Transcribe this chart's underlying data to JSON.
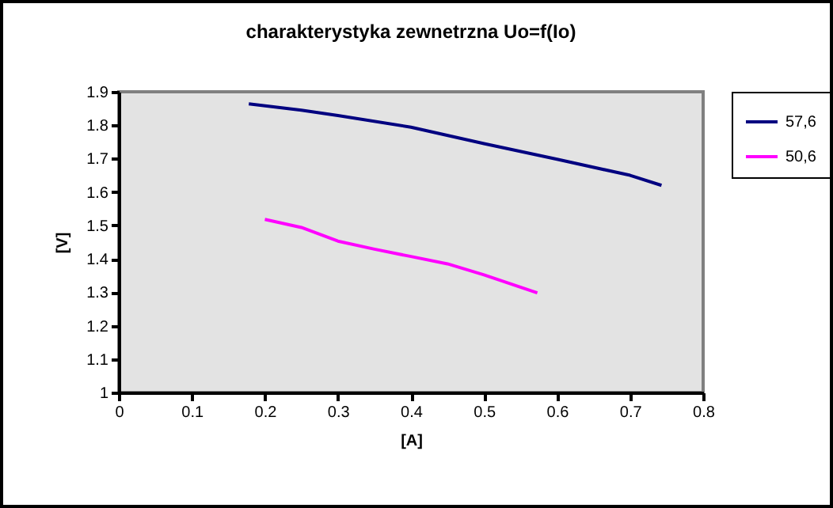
{
  "chart_data": {
    "type": "line",
    "title": "charakterystyka zewnetrzna Uo=f(Io)",
    "xlabel": "[A]",
    "ylabel": "[V]",
    "xlim": [
      0,
      0.8
    ],
    "xticks": [
      0,
      0.1,
      0.2,
      0.3,
      0.4,
      0.5,
      0.6,
      0.7,
      0.8
    ],
    "ylim": [
      1,
      1.9
    ],
    "yticks": [
      1,
      1.1,
      1.2,
      1.3,
      1.4,
      1.5,
      1.6,
      1.7,
      1.8,
      1.9
    ],
    "grid": false,
    "legend": "right",
    "marker": "none",
    "line_style": "solid",
    "series": [
      {
        "name": "57,6",
        "color": "#000080",
        "x": [
          0.178,
          0.25,
          0.3,
          0.4,
          0.5,
          0.6,
          0.7,
          0.743
        ],
        "values": [
          1.864,
          1.845,
          1.829,
          1.794,
          1.745,
          1.698,
          1.65,
          1.62
        ]
      },
      {
        "name": "50,6",
        "color": "#ff00ff",
        "x": [
          0.2,
          0.25,
          0.3,
          0.35,
          0.4,
          0.45,
          0.5,
          0.573
        ],
        "values": [
          1.518,
          1.494,
          1.453,
          1.429,
          1.407,
          1.385,
          1.352,
          1.298
        ]
      }
    ]
  }
}
